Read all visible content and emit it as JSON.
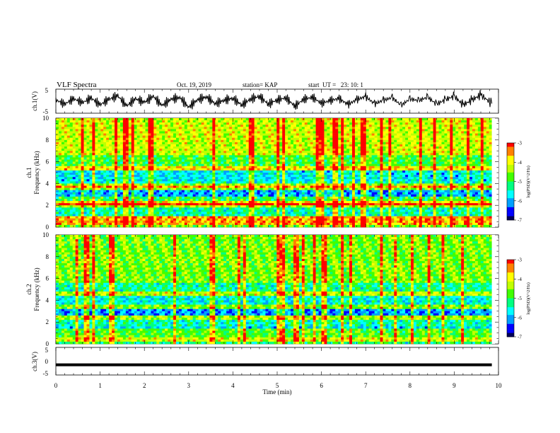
{
  "header": {
    "title": "VLF Spectra",
    "date": "Oct. 19, 2019",
    "station": "station= KAP",
    "start_ut": "start  UT =   23: 10: 1"
  },
  "chart_data": [
    {
      "id": "ch1",
      "type": "line",
      "ylabel": "ch.1(V)",
      "ylim": [
        -5,
        5
      ],
      "yticks": [
        "5",
        "-5"
      ],
      "xlim": [
        0,
        10
      ],
      "x_extent_min": 9.85,
      "series": [
        {
          "x": [
            0.0,
            0.2,
            0.4,
            0.6,
            0.8,
            1.0,
            1.2,
            1.4,
            1.6,
            1.8,
            2.0,
            2.2,
            2.4,
            2.6,
            2.8,
            3.0,
            3.2,
            3.4,
            3.6,
            3.8,
            4.0,
            4.2,
            4.4,
            4.6,
            4.8,
            5.0,
            5.2,
            5.4,
            5.6,
            5.8,
            6.0,
            6.2,
            6.4,
            6.6,
            6.8,
            7.0,
            7.2,
            7.4,
            7.6,
            7.8,
            8.0,
            8.2,
            8.4,
            8.6,
            8.8,
            9.0,
            9.2,
            9.4,
            9.6,
            9.85
          ],
          "y": [
            0.5,
            -1.2,
            1.0,
            -0.6,
            1.3,
            -1.5,
            0.8,
            2.2,
            -2.0,
            1.0,
            -0.5,
            2.0,
            -1.8,
            0.8,
            1.5,
            -2.5,
            0.6,
            1.8,
            -1.0,
            0.4,
            1.2,
            -1.6,
            0.9,
            2.0,
            -1.2,
            0.5,
            1.4,
            -2.1,
            0.8,
            1.6,
            -0.9,
            0.3,
            1.1,
            -1.4,
            0.7,
            1.9,
            -1.1,
            0.4,
            1.5,
            -1.8,
            0.9,
            0.2,
            1.7,
            -1.3,
            0.6,
            2.1,
            -1.6,
            0.5,
            2.6,
            -1.0
          ]
        }
      ]
    },
    {
      "id": "ch1-spectrogram",
      "type": "heatmap",
      "ylabel": "ch.1\nFrequency (kHz)",
      "ylabel_line1": "ch.1",
      "ylabel_line2": "Frequency (kHz)",
      "ylim": [
        0,
        10
      ],
      "yticks": [
        "0",
        "2",
        "4",
        "6",
        "8",
        "10"
      ],
      "xlim": [
        0,
        10
      ],
      "x_extent_min": 9.85,
      "colorbar": {
        "label": "log(PSD)(V^2/Hz)",
        "range": [
          -7,
          -3
        ],
        "ticks": [
          "-3",
          "-4",
          "-5",
          "-6",
          "-7"
        ]
      },
      "frequency_bands_khz": [
        {
          "from": 0,
          "to": 1.0,
          "level": -4.6
        },
        {
          "from": 1.0,
          "to": 2.0,
          "level": -5.4
        },
        {
          "from": 2.0,
          "to": 2.8,
          "level": -5.0
        },
        {
          "from": 2.8,
          "to": 3.4,
          "level": -6.0
        },
        {
          "from": 3.4,
          "to": 4.2,
          "level": -5.5
        },
        {
          "from": 4.2,
          "to": 5.2,
          "level": -5.7
        },
        {
          "from": 5.2,
          "to": 6.6,
          "level": -4.9
        },
        {
          "from": 6.6,
          "to": 10.0,
          "level": -4.2
        }
      ],
      "lines_khz": [
        0.3,
        0.6,
        0.9,
        2.0,
        2.2,
        3.6,
        3.8,
        5.4
      ]
    },
    {
      "id": "ch2-spectrogram",
      "type": "heatmap",
      "ylabel_line1": "ch.2",
      "ylabel_line2": "Frequency (kHz)",
      "ylim": [
        0,
        10
      ],
      "yticks": [
        "0",
        "2",
        "4",
        "6",
        "8",
        "10"
      ],
      "xlim": [
        0,
        10
      ],
      "x_extent_min": 9.85,
      "colorbar": {
        "label": "log(PSD)(V^2/Hz)",
        "range": [
          -7,
          -3
        ],
        "ticks": [
          "-3",
          "-4",
          "-5",
          "-6",
          "-7"
        ]
      },
      "frequency_bands_khz": [
        {
          "from": 0,
          "to": 0.6,
          "level": -5.2
        },
        {
          "from": 0.6,
          "to": 1.6,
          "level": -5.8
        },
        {
          "from": 1.6,
          "to": 2.6,
          "level": -5.4
        },
        {
          "from": 2.6,
          "to": 3.3,
          "level": -6.1
        },
        {
          "from": 3.3,
          "to": 4.4,
          "level": -5.6
        },
        {
          "from": 4.4,
          "to": 5.6,
          "level": -5.3
        },
        {
          "from": 5.6,
          "to": 10.0,
          "level": -4.6
        }
      ],
      "lines_khz": [
        0.4,
        0.8,
        1.2,
        2.4,
        3.4,
        4.6
      ]
    },
    {
      "id": "ch3",
      "type": "line",
      "ylabel": "ch.3(V)",
      "ylim": [
        -5,
        5
      ],
      "yticks": [
        "5",
        "0",
        "-5"
      ],
      "xlim": [
        0,
        10
      ],
      "x_extent_min": 9.85,
      "series": [
        {
          "x": [
            0,
            9.85
          ],
          "y": [
            -1.3,
            -1.3
          ]
        }
      ]
    }
  ],
  "x_axis": {
    "label": "Time (min)",
    "ticks": [
      "0",
      "1",
      "2",
      "3",
      "4",
      "5",
      "6",
      "7",
      "8",
      "9",
      "10"
    ]
  },
  "colors": {
    "colormap": [
      "#00005a",
      "#0000ff",
      "#00a0ff",
      "#00ffff",
      "#00ff80",
      "#40ff00",
      "#c0ff00",
      "#ffff00",
      "#ff8000",
      "#ff0000",
      "#e8e8e8"
    ]
  }
}
